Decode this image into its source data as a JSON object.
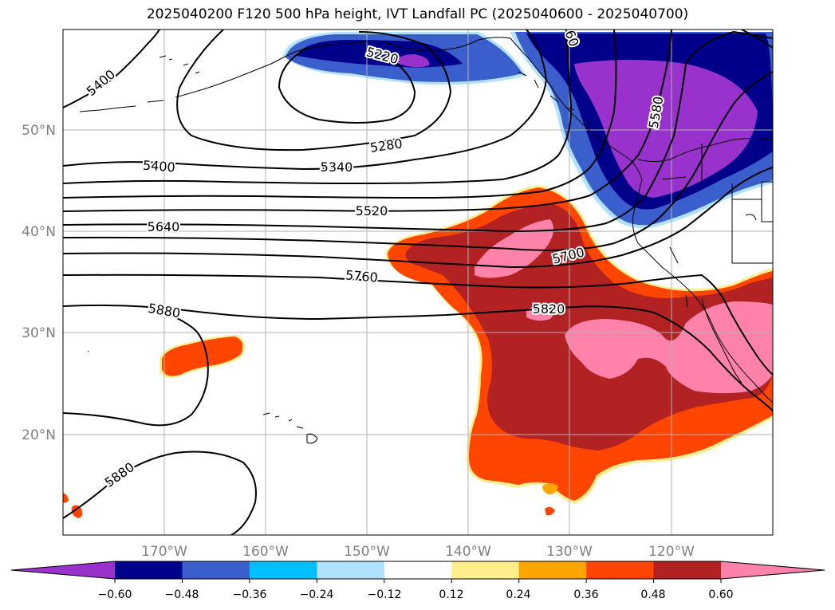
{
  "title": "2025040200 F120 500 hPa height, IVT Landfall PC (2025040600 - 2025040700)",
  "map": {
    "lon_ticks": [
      "170°W",
      "160°W",
      "150°W",
      "140°W",
      "130°W",
      "120°W"
    ],
    "lat_ticks": [
      "50°N",
      "40°N",
      "30°N",
      "20°N"
    ],
    "contour_labels": [
      "5400",
      "5220",
      "5280",
      "5340",
      "5400",
      "5520",
      "5640",
      "5700",
      "5760",
      "5820",
      "5880",
      "5880",
      "5580",
      "60"
    ]
  },
  "colorbar": {
    "ticks": [
      "−0.60",
      "−0.48",
      "−0.36",
      "−0.24",
      "−0.12",
      "0.12",
      "0.24",
      "0.36",
      "0.48",
      "0.60"
    ],
    "colors": [
      "#9932CC",
      "#00008B",
      "#3A5FCD",
      "#00BFFF",
      "#B0E2FF",
      "#FFFFFF",
      "#FFEC8B",
      "#FFA500",
      "#FF4500",
      "#B22222",
      "#FF82AB"
    ]
  }
}
